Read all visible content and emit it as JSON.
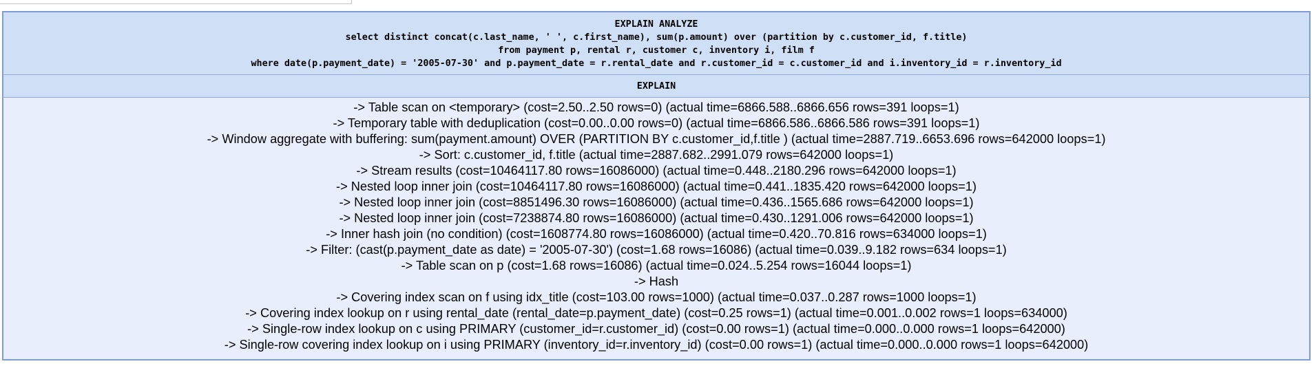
{
  "query": {
    "lines": [
      "EXPLAIN ANALYZE",
      "select distinct concat(c.last_name, ' ', c.first_name), sum(p.amount) over (partition by c.customer_id, f.title)",
      "from payment p, rental r, customer c, inventory i, film f",
      "where date(p.payment_date) = '2005-07-30' and p.payment_date = r.rental_date and r.customer_id = c.customer_id and i.inventory_id = r.inventory_id"
    ]
  },
  "column": {
    "header": "EXPLAIN"
  },
  "plan": {
    "lines": [
      "-> Table scan on <temporary> (cost=2.50..2.50 rows=0) (actual time=6866.588..6866.656 rows=391 loops=1)",
      "-> Temporary table with deduplication (cost=0.00..0.00 rows=0) (actual time=6866.586..6866.586 rows=391 loops=1)",
      "-> Window aggregate with buffering: sum(payment.amount) OVER (PARTITION BY c.customer_id,f.title ) (actual time=2887.719..6653.696 rows=642000 loops=1)",
      "-> Sort: c.customer_id, f.title (actual time=2887.682..2991.079 rows=642000 loops=1)",
      "-> Stream results (cost=10464117.80 rows=16086000) (actual time=0.448..2180.296 rows=642000 loops=1)",
      "-> Nested loop inner join (cost=10464117.80 rows=16086000) (actual time=0.441..1835.420 rows=642000 loops=1)",
      "-> Nested loop inner join (cost=8851496.30 rows=16086000) (actual time=0.436..1565.686 rows=642000 loops=1)",
      "-> Nested loop inner join (cost=7238874.80 rows=16086000) (actual time=0.430..1291.006 rows=642000 loops=1)",
      "-> Inner hash join (no condition) (cost=1608774.80 rows=16086000) (actual time=0.420..70.816 rows=634000 loops=1)",
      "-> Filter: (cast(p.payment_date as date) = '2005-07-30') (cost=1.68 rows=16086) (actual time=0.039..9.182 rows=634 loops=1)",
      "-> Table scan on p (cost=1.68 rows=16086) (actual time=0.024..5.254 rows=16044 loops=1)",
      "-> Hash",
      "-> Covering index scan on f using idx_title (cost=103.00 rows=1000) (actual time=0.037..0.287 rows=1000 loops=1)",
      "-> Covering index lookup on r using rental_date (rental_date=p.payment_date) (cost=0.25 rows=1) (actual time=0.001..0.002 rows=1 loops=634000)",
      "-> Single-row index lookup on c using PRIMARY (customer_id=r.customer_id) (cost=0.00 rows=1) (actual time=0.000..0.000 rows=1 loops=642000)",
      "-> Single-row covering index lookup on i using PRIMARY (inventory_id=r.inventory_id) (cost=0.00 rows=1) (actual time=0.000..0.000 rows=1 loops=642000)"
    ]
  },
  "colors": {
    "header_bg": "#cfe0f6",
    "body_bg": "#e8eefb",
    "border": "#7f9bd5"
  }
}
